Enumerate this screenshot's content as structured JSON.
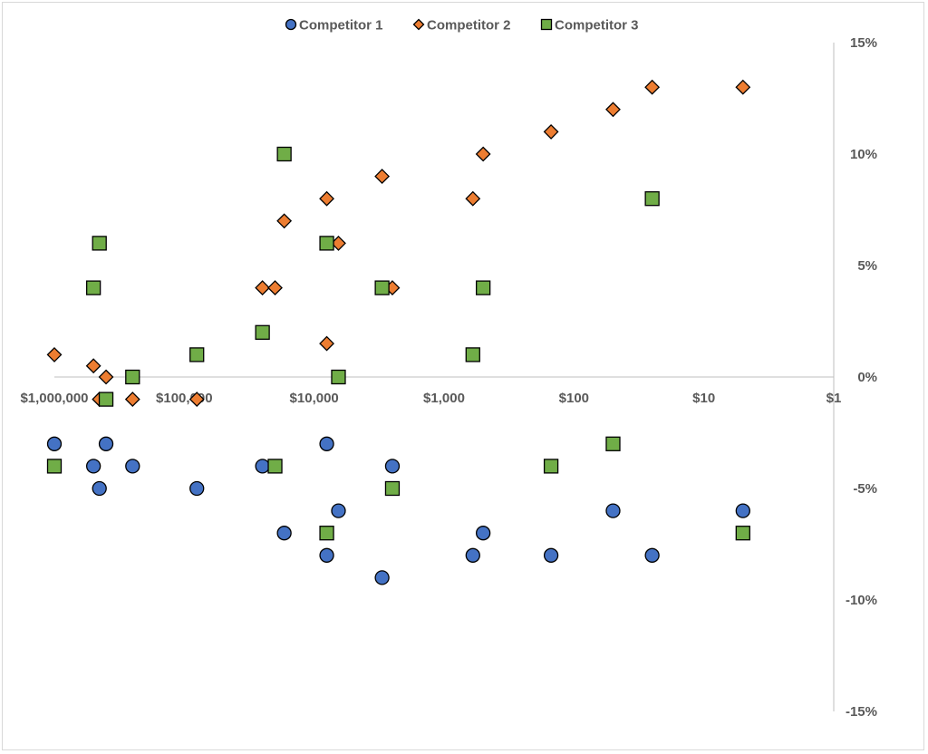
{
  "chart_data": {
    "type": "scatter",
    "title": "",
    "xlabel": "",
    "ylabel": "",
    "x_scale": "log",
    "x_reversed": true,
    "xlim": [
      1000000,
      1
    ],
    "ylim": [
      -15,
      15
    ],
    "x_ticks": [
      {
        "value": 1000000,
        "label": "$1,000,000"
      },
      {
        "value": 100000,
        "label": "$100,000"
      },
      {
        "value": 10000,
        "label": "$10,000"
      },
      {
        "value": 1000,
        "label": "$1,000"
      },
      {
        "value": 100,
        "label": "$100"
      },
      {
        "value": 10,
        "label": "$10"
      },
      {
        "value": 1,
        "label": "$1"
      }
    ],
    "y_ticks": [
      {
        "value": 15,
        "label": "15%"
      },
      {
        "value": 10,
        "label": "10%"
      },
      {
        "value": 5,
        "label": "5%"
      },
      {
        "value": 0,
        "label": "0%"
      },
      {
        "value": -5,
        "label": "-5%"
      },
      {
        "value": -10,
        "label": "-10%"
      },
      {
        "value": -15,
        "label": "-15%"
      }
    ],
    "grid": false,
    "legend_position": "top",
    "series": [
      {
        "name": "Competitor 1",
        "marker": "circle",
        "color": "#4472C4",
        "points": [
          {
            "x": 1000000,
            "y": -3
          },
          {
            "x": 500000,
            "y": -4
          },
          {
            "x": 450000,
            "y": -5
          },
          {
            "x": 400000,
            "y": -3
          },
          {
            "x": 250000,
            "y": -4
          },
          {
            "x": 80000,
            "y": -5
          },
          {
            "x": 25000,
            "y": -4
          },
          {
            "x": 17000,
            "y": -7
          },
          {
            "x": 8000,
            "y": -3
          },
          {
            "x": 8000,
            "y": -8
          },
          {
            "x": 6500,
            "y": -6
          },
          {
            "x": 3000,
            "y": -9
          },
          {
            "x": 2500,
            "y": -4
          },
          {
            "x": 600,
            "y": -8
          },
          {
            "x": 500,
            "y": -7
          },
          {
            "x": 150,
            "y": -8
          },
          {
            "x": 50,
            "y": -6
          },
          {
            "x": 25,
            "y": -8
          },
          {
            "x": 5,
            "y": -6
          }
        ]
      },
      {
        "name": "Competitor 2",
        "marker": "diamond",
        "color": "#ED7D31",
        "points": [
          {
            "x": 1000000,
            "y": 1
          },
          {
            "x": 500000,
            "y": 0.5
          },
          {
            "x": 450000,
            "y": -1
          },
          {
            "x": 400000,
            "y": 0
          },
          {
            "x": 250000,
            "y": -1
          },
          {
            "x": 80000,
            "y": -1
          },
          {
            "x": 25000,
            "y": 4
          },
          {
            "x": 20000,
            "y": 4
          },
          {
            "x": 17000,
            "y": 7
          },
          {
            "x": 8000,
            "y": 8
          },
          {
            "x": 8000,
            "y": 1.5
          },
          {
            "x": 6500,
            "y": 6
          },
          {
            "x": 3000,
            "y": 9
          },
          {
            "x": 2500,
            "y": 4
          },
          {
            "x": 600,
            "y": 8
          },
          {
            "x": 500,
            "y": 10
          },
          {
            "x": 150,
            "y": 11
          },
          {
            "x": 50,
            "y": 12
          },
          {
            "x": 25,
            "y": 13
          },
          {
            "x": 5,
            "y": 13
          }
        ]
      },
      {
        "name": "Competitor 3",
        "marker": "square",
        "color": "#70AD47",
        "points": [
          {
            "x": 1000000,
            "y": -4
          },
          {
            "x": 500000,
            "y": 4
          },
          {
            "x": 450000,
            "y": 6
          },
          {
            "x": 400000,
            "y": -1
          },
          {
            "x": 250000,
            "y": 0
          },
          {
            "x": 80000,
            "y": 1
          },
          {
            "x": 25000,
            "y": 2
          },
          {
            "x": 20000,
            "y": -4
          },
          {
            "x": 17000,
            "y": 10
          },
          {
            "x": 8000,
            "y": 6
          },
          {
            "x": 8000,
            "y": -7
          },
          {
            "x": 6500,
            "y": 0
          },
          {
            "x": 3000,
            "y": 4
          },
          {
            "x": 2500,
            "y": -5
          },
          {
            "x": 600,
            "y": 1
          },
          {
            "x": 500,
            "y": 4
          },
          {
            "x": 150,
            "y": -4
          },
          {
            "x": 50,
            "y": -3
          },
          {
            "x": 25,
            "y": 8
          },
          {
            "x": 5,
            "y": -7
          }
        ]
      }
    ]
  }
}
